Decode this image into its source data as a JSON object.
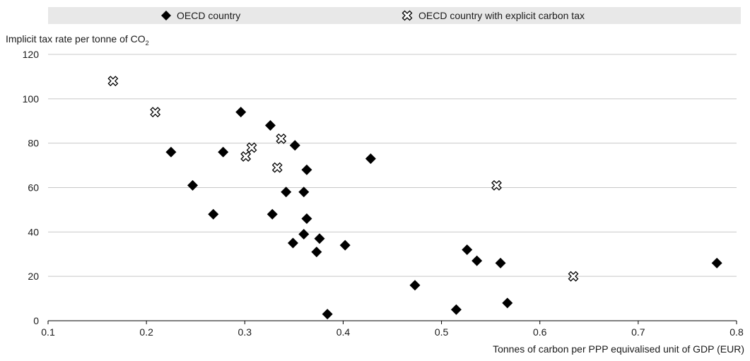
{
  "legend": {
    "series_a": "OECD country",
    "series_b": "OECD country with explicit carbon tax"
  },
  "axes": {
    "ylabel_main": "Implicit tax rate per tonne of CO",
    "ylabel_sub": "2",
    "xlabel": "Tonnes of carbon per PPP equivalised unit of GDP (EUR)"
  },
  "colors": {
    "marker": "#000000",
    "grid": "#c8c8c8",
    "legend_bg": "#e8e8e8"
  },
  "chart_data": {
    "type": "scatter",
    "xlabel": "Tonnes of carbon per PPP equivalised unit of GDP (EUR)",
    "ylabel": "Implicit tax rate per tonne of CO2",
    "xlim": [
      0.1,
      0.8
    ],
    "ylim": [
      0,
      120
    ],
    "x_ticks": [
      "0.1",
      "0.2",
      "0.3",
      "0.4",
      "0.5",
      "0.6",
      "0.7",
      "0.8"
    ],
    "y_ticks": [
      "0",
      "20",
      "40",
      "60",
      "80",
      "100",
      "120"
    ],
    "grid": "horizontal",
    "legend_position": "top",
    "series": [
      {
        "name": "OECD country",
        "marker": "filled-diamond",
        "points": [
          {
            "x": 0.225,
            "y": 76
          },
          {
            "x": 0.247,
            "y": 61
          },
          {
            "x": 0.268,
            "y": 48
          },
          {
            "x": 0.278,
            "y": 76
          },
          {
            "x": 0.296,
            "y": 94
          },
          {
            "x": 0.326,
            "y": 88
          },
          {
            "x": 0.328,
            "y": 48
          },
          {
            "x": 0.342,
            "y": 58
          },
          {
            "x": 0.349,
            "y": 35
          },
          {
            "x": 0.351,
            "y": 79
          },
          {
            "x": 0.36,
            "y": 58
          },
          {
            "x": 0.36,
            "y": 39
          },
          {
            "x": 0.363,
            "y": 68
          },
          {
            "x": 0.363,
            "y": 46
          },
          {
            "x": 0.373,
            "y": 31
          },
          {
            "x": 0.376,
            "y": 37
          },
          {
            "x": 0.384,
            "y": 3
          },
          {
            "x": 0.402,
            "y": 34
          },
          {
            "x": 0.428,
            "y": 73
          },
          {
            "x": 0.473,
            "y": 16
          },
          {
            "x": 0.515,
            "y": 5
          },
          {
            "x": 0.526,
            "y": 32
          },
          {
            "x": 0.536,
            "y": 27
          },
          {
            "x": 0.56,
            "y": 26
          },
          {
            "x": 0.567,
            "y": 8
          },
          {
            "x": 0.78,
            "y": 26
          }
        ]
      },
      {
        "name": "OECD country with explicit carbon tax",
        "marker": "hollow-cross",
        "points": [
          {
            "x": 0.166,
            "y": 108
          },
          {
            "x": 0.209,
            "y": 94
          },
          {
            "x": 0.301,
            "y": 74
          },
          {
            "x": 0.307,
            "y": 78
          },
          {
            "x": 0.333,
            "y": 69
          },
          {
            "x": 0.337,
            "y": 82
          },
          {
            "x": 0.556,
            "y": 61
          },
          {
            "x": 0.634,
            "y": 20
          }
        ]
      }
    ]
  }
}
